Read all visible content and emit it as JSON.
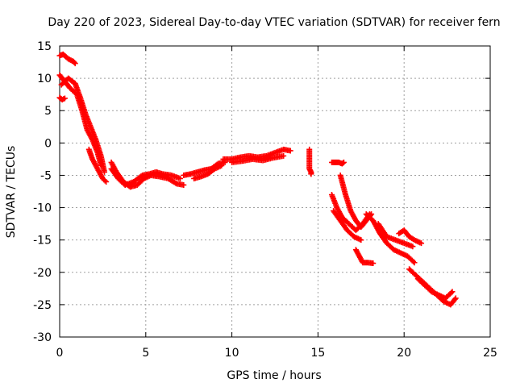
{
  "chart_data": {
    "type": "scatter",
    "title": "Day 220 of 2023, Sidereal Day-to-day VTEC variation (SDTVAR) for receiver fern",
    "xlabel": "GPS time / hours",
    "ylabel": "SDTVAR / TECUs",
    "xlim": [
      0,
      25
    ],
    "ylim": [
      -30,
      15
    ],
    "xticks": [
      0,
      5,
      10,
      15,
      20,
      25
    ],
    "yticks": [
      -30,
      -25,
      -20,
      -15,
      -10,
      -5,
      0,
      5,
      10,
      15
    ],
    "grid": true,
    "marker": "+",
    "color": "#ff0000",
    "series": [
      {
        "name": "s1",
        "x": [
          0.0,
          0.2,
          0.5,
          0.8,
          0.9
        ],
        "y": [
          13.5,
          13.7,
          13.0,
          12.6,
          12.3
        ]
      },
      {
        "name": "s2",
        "x": [
          0.0,
          0.15,
          0.3
        ],
        "y": [
          7.0,
          6.7,
          6.9
        ]
      },
      {
        "name": "s3",
        "x": [
          0.0,
          0.3,
          0.6,
          1.0,
          1.3,
          1.6,
          1.9,
          2.2,
          2.4
        ],
        "y": [
          10.5,
          9.5,
          8.5,
          7.5,
          5.0,
          2.0,
          0.5,
          -1.5,
          -3.5
        ]
      },
      {
        "name": "s4",
        "x": [
          0.1,
          0.5,
          0.9,
          1.2,
          1.5,
          1.8,
          2.1,
          2.4,
          2.6
        ],
        "y": [
          9.0,
          10.0,
          9.2,
          7.0,
          4.5,
          2.5,
          0.5,
          -2.0,
          -4.5
        ]
      },
      {
        "name": "s5",
        "x": [
          1.7,
          1.9,
          2.2,
          2.5,
          2.7
        ],
        "y": [
          -1.0,
          -2.5,
          -4.0,
          -5.5,
          -6.0
        ]
      },
      {
        "name": "s6",
        "x": [
          3.0,
          3.3,
          3.7,
          4.1,
          4.5,
          4.9,
          5.3,
          5.8,
          6.3,
          6.8,
          7.2
        ],
        "y": [
          -3.0,
          -4.5,
          -6.0,
          -6.8,
          -6.5,
          -5.5,
          -5.0,
          -5.2,
          -5.5,
          -6.3,
          -6.5
        ]
      },
      {
        "name": "s7",
        "x": [
          3.0,
          3.4,
          3.8,
          4.3,
          4.8,
          5.2,
          5.6,
          6.0,
          6.5,
          7.0
        ],
        "y": [
          -4.0,
          -5.5,
          -6.5,
          -6.0,
          -5.0,
          -4.8,
          -4.5,
          -4.8,
          -5.0,
          -5.5
        ]
      },
      {
        "name": "s8",
        "x": [
          7.2,
          7.6,
          8.0,
          8.4,
          8.8,
          9.2,
          9.6
        ],
        "y": [
          -5.0,
          -4.8,
          -4.5,
          -4.2,
          -4.0,
          -3.2,
          -3.0
        ]
      },
      {
        "name": "s9",
        "x": [
          7.8,
          8.2,
          8.6,
          9.0,
          9.4
        ],
        "y": [
          -5.5,
          -5.2,
          -4.8,
          -4.0,
          -3.5
        ]
      },
      {
        "name": "s10",
        "x": [
          9.5,
          10.0,
          10.5,
          11.0,
          11.5,
          12.0,
          12.5,
          13.0,
          13.4
        ],
        "y": [
          -2.5,
          -2.5,
          -2.2,
          -2.0,
          -2.2,
          -2.0,
          -1.5,
          -1.0,
          -1.2
        ]
      },
      {
        "name": "s11",
        "x": [
          10.0,
          10.6,
          11.2,
          11.8,
          12.4,
          13.0
        ],
        "y": [
          -3.0,
          -2.8,
          -2.5,
          -2.7,
          -2.3,
          -2.0
        ]
      },
      {
        "name": "s12",
        "x": [
          14.5,
          14.5,
          14.6,
          14.6
        ],
        "y": [
          -1.0,
          -4.0,
          -4.5,
          -4.8
        ]
      },
      {
        "name": "s13",
        "x": [
          15.8,
          16.0,
          16.2,
          16.4,
          16.5
        ],
        "y": [
          -3.0,
          -3.0,
          -3.0,
          -3.2,
          -3.0
        ]
      },
      {
        "name": "s14",
        "x": [
          16.3,
          16.6,
          16.9,
          17.2,
          17.5,
          17.8,
          18.1
        ],
        "y": [
          -5.0,
          -8.0,
          -10.5,
          -12.0,
          -13.0,
          -12.0,
          -11.0
        ]
      },
      {
        "name": "s15",
        "x": [
          15.8,
          16.1,
          16.4,
          16.8,
          17.2,
          17.6,
          18.0
        ],
        "y": [
          -8.0,
          -10.0,
          -11.5,
          -12.5,
          -13.5,
          -12.5,
          -11.0
        ]
      },
      {
        "name": "s16",
        "x": [
          15.9,
          16.3,
          16.7,
          17.1,
          17.5
        ],
        "y": [
          -10.5,
          -12.0,
          -13.5,
          -14.5,
          -15.0
        ]
      },
      {
        "name": "s17",
        "x": [
          17.2,
          17.4,
          17.6,
          17.9,
          18.2
        ],
        "y": [
          -16.5,
          -17.5,
          -18.5,
          -18.5,
          -18.6
        ]
      },
      {
        "name": "s18",
        "x": [
          17.8,
          18.2,
          18.6,
          19.0,
          19.4,
          19.8,
          20.2,
          20.6
        ],
        "y": [
          -11.0,
          -12.0,
          -14.0,
          -15.5,
          -16.5,
          -17.0,
          -17.5,
          -18.5
        ]
      },
      {
        "name": "s19",
        "x": [
          18.5,
          19.0,
          19.5,
          20.0,
          20.5
        ],
        "y": [
          -12.5,
          -14.5,
          -15.0,
          -15.5,
          -16.0
        ]
      },
      {
        "name": "s20",
        "x": [
          19.7,
          20.0,
          20.3,
          20.6,
          21.0
        ],
        "y": [
          -14.0,
          -13.5,
          -14.5,
          -15.0,
          -15.5
        ]
      },
      {
        "name": "s21",
        "x": [
          20.3,
          20.7,
          21.1,
          21.5,
          21.9,
          22.3,
          22.7,
          23.0
        ],
        "y": [
          -19.5,
          -20.5,
          -21.5,
          -22.5,
          -23.5,
          -24.5,
          -25.0,
          -24.0
        ]
      },
      {
        "name": "s22",
        "x": [
          20.8,
          21.2,
          21.6,
          22.0,
          22.4,
          22.8
        ],
        "y": [
          -21.0,
          -22.0,
          -23.0,
          -23.5,
          -24.0,
          -23.0
        ]
      }
    ]
  }
}
